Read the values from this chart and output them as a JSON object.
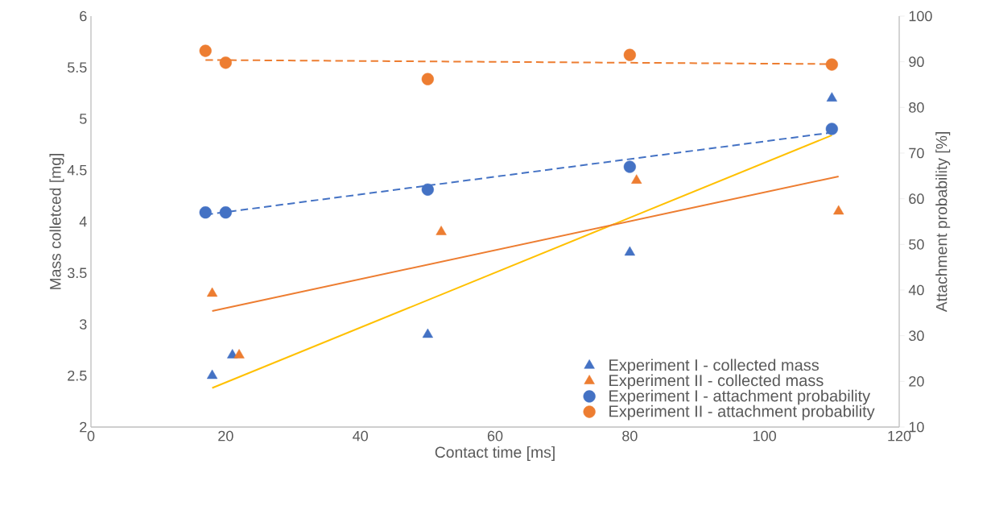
{
  "chart_data": {
    "type": "scatter",
    "xlabel": "Contact time [ms]",
    "ylabel": "Mass colletced [mg]",
    "y2label": "Attachment probability [%]",
    "xlim": [
      0,
      120
    ],
    "xticks": [
      0,
      20,
      40,
      60,
      80,
      100,
      120
    ],
    "ylim": [
      2,
      6
    ],
    "yticks": [
      2,
      2.5,
      3,
      3.5,
      4,
      4.5,
      5,
      5.5,
      6
    ],
    "y2lim": [
      10,
      100
    ],
    "y2ticks": [
      10,
      20,
      30,
      40,
      50,
      60,
      70,
      80,
      90,
      100
    ],
    "legend": "bottom right",
    "series": [
      {
        "name": "Experiment I - collected mass",
        "marker": "triangle",
        "color": "#4472c4",
        "x": [
          18,
          21,
          50,
          80,
          110
        ],
        "values": [
          2.5,
          2.7,
          2.9,
          3.7,
          5.2
        ]
      },
      {
        "name": "Experiment II - collected mass",
        "marker": "triangle",
        "color": "#ed7d31",
        "x": [
          18,
          22,
          52,
          81,
          111
        ],
        "values": [
          3.3,
          2.7,
          3.9,
          4.4,
          4.1
        ]
      },
      {
        "name": "Experiment I - attachment probability",
        "marker": "circle",
        "color": "#4472c4",
        "axis": "y2",
        "x": [
          17,
          20,
          50,
          80,
          110
        ],
        "values": [
          57,
          57,
          62,
          67,
          75.3
        ]
      },
      {
        "name": "Experiment II - attachment probability",
        "marker": "circle",
        "color": "#ed7d31",
        "axis": "y2",
        "x": [
          17,
          20,
          50,
          80,
          110
        ],
        "values": [
          92.4,
          89.8,
          86.2,
          91.5,
          89.4
        ]
      },
      {
        "type": "line",
        "line_style": "solid",
        "color": "#ffc000",
        "x": [
          18,
          110
        ],
        "values": [
          2.38,
          4.84
        ]
      },
      {
        "type": "line",
        "line_style": "solid",
        "color": "#ed7d31",
        "x": [
          18,
          111
        ],
        "values": [
          3.13,
          4.44
        ]
      },
      {
        "type": "line",
        "line_style": "dashed",
        "color": "#4472c4",
        "axis": "y2",
        "x": [
          17,
          110
        ],
        "values": [
          56.5,
          74.5
        ]
      },
      {
        "type": "line",
        "line_style": "dashed",
        "color": "#ed7d31",
        "axis": "y2",
        "x": [
          17,
          110
        ],
        "values": [
          90.4,
          89.5
        ]
      }
    ]
  }
}
